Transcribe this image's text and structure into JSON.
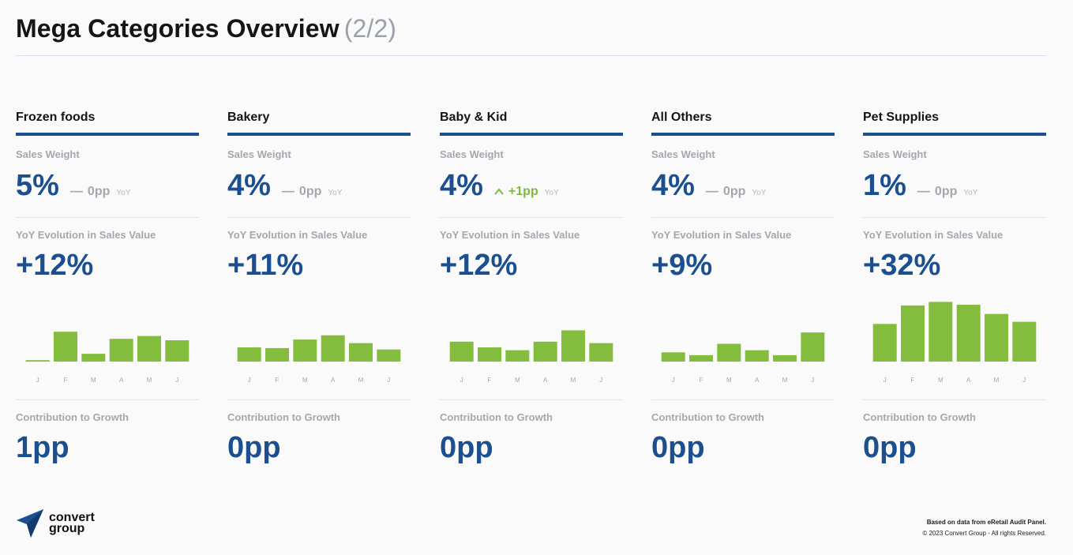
{
  "header": {
    "title": "Mega Categories Overview",
    "page": "(2/2)"
  },
  "labels": {
    "sales_weight": "Sales Weight",
    "yoy_evolution": "YoY Evolution in Sales Value",
    "contribution": "Contribution to Growth",
    "yoy_tag": "YoY"
  },
  "colors": {
    "accent": "#1b4f8f",
    "bar": "#84bd3e",
    "up": "#7fba3c",
    "muted": "#a3a8ae"
  },
  "categories": [
    {
      "name": "Frozen foods",
      "sales_weight": "5%",
      "weight_delta": "0pp",
      "delta_icon": "dash-icon",
      "yoy_value": "+12%",
      "contribution": "1pp"
    },
    {
      "name": "Bakery",
      "sales_weight": "4%",
      "weight_delta": "0pp",
      "delta_icon": "dash-icon",
      "yoy_value": "+11%",
      "contribution": "0pp"
    },
    {
      "name": "Baby & Kid",
      "sales_weight": "4%",
      "weight_delta": "+1pp",
      "delta_icon": "chevron-up-icon",
      "yoy_value": "+12%",
      "contribution": "0pp"
    },
    {
      "name": "All Others",
      "sales_weight": "4%",
      "weight_delta": "0pp",
      "delta_icon": "dash-icon",
      "yoy_value": "+9%",
      "contribution": "0pp"
    },
    {
      "name": "Pet Supplies",
      "sales_weight": "1%",
      "weight_delta": "0pp",
      "delta_icon": "dash-icon",
      "yoy_value": "+32%",
      "contribution": "0pp"
    }
  ],
  "chart_data": [
    {
      "type": "bar",
      "categories": [
        "J",
        "F",
        "M",
        "A",
        "M",
        "J"
      ],
      "values": [
        2,
        42,
        11,
        32,
        36,
        30
      ],
      "ylim": [
        0,
        100
      ],
      "grid": false
    },
    {
      "type": "bar",
      "categories": [
        "J",
        "F",
        "M",
        "A",
        "M",
        "J"
      ],
      "values": [
        20,
        19,
        31,
        37,
        26,
        17
      ],
      "ylim": [
        0,
        100
      ],
      "grid": false
    },
    {
      "type": "bar",
      "categories": [
        "J",
        "F",
        "M",
        "A",
        "M",
        "J"
      ],
      "values": [
        28,
        20,
        16,
        28,
        44,
        26
      ],
      "ylim": [
        0,
        100
      ],
      "grid": false
    },
    {
      "type": "bar",
      "categories": [
        "J",
        "F",
        "M",
        "A",
        "M",
        "J"
      ],
      "values": [
        13,
        9,
        25,
        16,
        9,
        41
      ],
      "ylim": [
        0,
        100
      ],
      "grid": false
    },
    {
      "type": "bar",
      "categories": [
        "J",
        "F",
        "M",
        "A",
        "M",
        "J"
      ],
      "values": [
        53,
        79,
        84,
        80,
        67,
        56
      ],
      "ylim": [
        0,
        100
      ],
      "grid": false
    }
  ],
  "footer": {
    "logo_line1": "convert",
    "logo_line2": "group",
    "source": "Based on data from eRetail Audit Panel.",
    "copyright": "© 2023 Convert Group - All rights Reserved."
  }
}
